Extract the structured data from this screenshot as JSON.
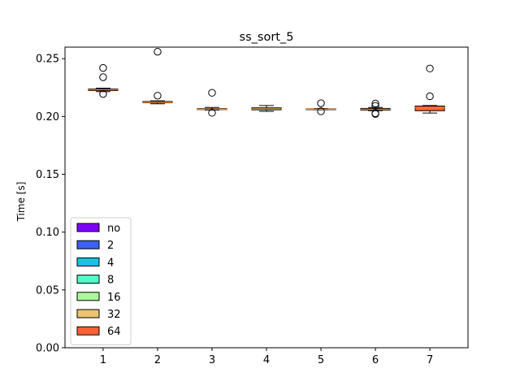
{
  "chart_data": {
    "type": "box",
    "title": "ss_sort_5",
    "xlabel": "",
    "ylabel": "Time [s]",
    "ylim": [
      0.0,
      0.26
    ],
    "yticks": [
      "0.00",
      "0.05",
      "0.10",
      "0.15",
      "0.20",
      "0.25"
    ],
    "categories": [
      "1",
      "2",
      "3",
      "4",
      "5",
      "6",
      "7"
    ],
    "legend": {
      "placement": "lower-left",
      "entries": [
        {
          "label": "no",
          "color": "#8000ff"
        },
        {
          "label": "2",
          "color": "#3b62f2"
        },
        {
          "label": "4",
          "color": "#19c3e3"
        },
        {
          "label": "8",
          "color": "#54f9c8"
        },
        {
          "label": "16",
          "color": "#abf99a"
        },
        {
          "label": "32",
          "color": "#ecc36e"
        },
        {
          "label": "64",
          "color": "#ff5f35"
        }
      ]
    },
    "boxes": [
      {
        "category": "1",
        "color": "#8000ff",
        "whisker_low": 0.2215,
        "q1": 0.2225,
        "median": 0.2232,
        "q3": 0.2238,
        "whisker_high": 0.2245,
        "outliers": [
          0.242,
          0.234,
          0.2195
        ]
      },
      {
        "category": "2",
        "color": "#3b62f2",
        "whisker_low": 0.211,
        "q1": 0.212,
        "median": 0.2125,
        "q3": 0.213,
        "whisker_high": 0.2135,
        "outliers": [
          0.256,
          0.218
        ]
      },
      {
        "category": "3",
        "color": "#19c3e3",
        "whisker_low": 0.2055,
        "q1": 0.206,
        "median": 0.2063,
        "q3": 0.2068,
        "whisker_high": 0.2078,
        "outliers": [
          0.2205,
          0.2032
        ]
      },
      {
        "category": "4",
        "color": "#54f9c8",
        "whisker_low": 0.2045,
        "q1": 0.2058,
        "median": 0.2065,
        "q3": 0.2075,
        "whisker_high": 0.2095,
        "outliers": []
      },
      {
        "category": "5",
        "color": "#abf99a",
        "whisker_low": 0.2058,
        "q1": 0.2061,
        "median": 0.2063,
        "q3": 0.2066,
        "whisker_high": 0.2069,
        "outliers": [
          0.2115,
          0.2045
        ]
      },
      {
        "category": "6",
        "color": "#ecc36e",
        "whisker_low": 0.205,
        "q1": 0.2055,
        "median": 0.2062,
        "q3": 0.207,
        "whisker_high": 0.2078,
        "outliers": [
          0.2112,
          0.2092,
          0.2028,
          0.2022
        ]
      },
      {
        "category": "7",
        "color": "#ff5f35",
        "whisker_low": 0.203,
        "q1": 0.205,
        "median": 0.2075,
        "q3": 0.209,
        "whisker_high": 0.2095,
        "outliers": [
          0.2415,
          0.2175
        ]
      }
    ],
    "median_color": "#ff7f0e",
    "grid": false
  }
}
